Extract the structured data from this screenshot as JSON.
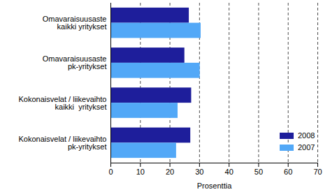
{
  "chart_data": {
    "type": "bar",
    "orientation": "horizontal",
    "categories": [
      "Omavaraisuusaste\nkaikki yritykset",
      "Omavaraisuusaste\npk-yritykset",
      "Kokonaisvelat / liikevaihto\nkaikki  yritykset",
      "Kokonaisvelat / liikevaihto\npk-yritykset"
    ],
    "series": [
      {
        "name": "2008",
        "color": "#1e1e9b",
        "values": [
          26.5,
          25,
          27.3,
          27
        ]
      },
      {
        "name": "2007",
        "color": "#52a8f7",
        "values": [
          30.5,
          30.2,
          22.7,
          22.2
        ]
      }
    ],
    "xlabel": "Prosenttia",
    "xlim": [
      0,
      70
    ],
    "xticks": [
      0,
      10,
      20,
      30,
      40,
      50,
      60,
      70
    ],
    "grid": true,
    "legend": "lower right"
  }
}
